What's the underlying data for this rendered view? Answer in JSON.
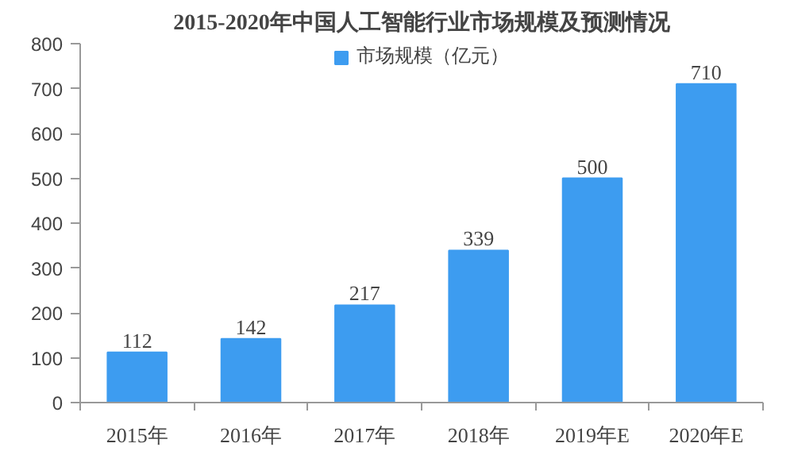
{
  "chart_data": {
    "type": "bar",
    "title": "2015-2020年中国人工智能行业市场规模及预测情况",
    "categories": [
      "2015年",
      "2016年",
      "2017年",
      "2018年",
      "2019年E",
      "2020年E"
    ],
    "series": [
      {
        "name": "市场规模（亿元）",
        "color": "#3d9cf0",
        "values": [
          112,
          142,
          217,
          339,
          500,
          710
        ]
      }
    ],
    "ylim": [
      0,
      800
    ],
    "yticks": [
      0,
      100,
      200,
      300,
      400,
      500,
      600,
      700,
      800
    ],
    "data_labels": true,
    "grid": false,
    "legend": "top"
  }
}
